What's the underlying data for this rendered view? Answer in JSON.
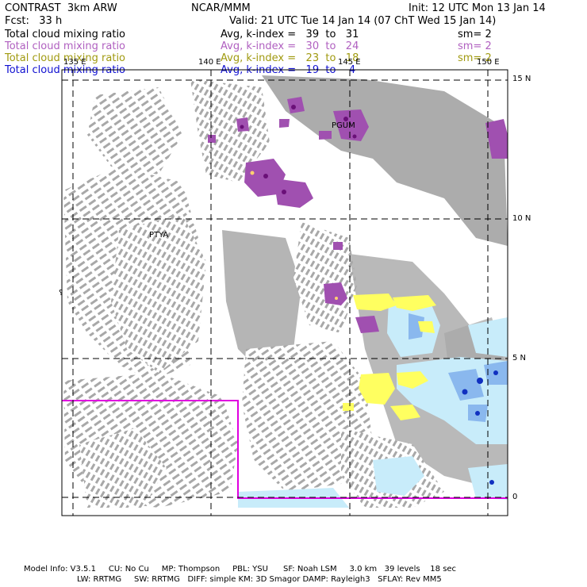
{
  "header": {
    "left_line1": "CONTRAST  3km ARW",
    "left_line2": "Fcst:   33 h",
    "center_line1": "NCAR/MMM",
    "init": "Init: 12 UTC Mon 13 Jan 14",
    "valid": "Valid: 21 UTC Tue 14 Jan 14 (07 ChT Wed 15 Jan 14)"
  },
  "fields": [
    {
      "name": "Total cloud mixing ratio",
      "range": "Avg, k-index =   39  to   31",
      "sm": "sm= 2",
      "color": "#000000"
    },
    {
      "name": "Total cloud mixing ratio",
      "range": "Avg, k-index =   30  to   24",
      "sm": "sm= 2",
      "color": "#b060c0"
    },
    {
      "name": "Total cloud mixing ratio",
      "range": "Avg, k-index =   23  to   18",
      "sm": "sm= 2",
      "color": "#a09a10"
    },
    {
      "name": "Total cloud mixing ratio",
      "range": "Avg, k-index =   19  to    4",
      "sm": "",
      "color": "#1010d0"
    }
  ],
  "map": {
    "lon_labels": [
      "135 E",
      "140 E",
      "145 E",
      "150 E"
    ],
    "lat_labels": [
      "15 N",
      "10 N",
      "5 N",
      "0"
    ],
    "stations": [
      "PGUM",
      "PTYA"
    ],
    "colors": {
      "cloud_grey": "#a8a8a8",
      "cloud_purple": "#a050b0",
      "cloud_dark_purple": "#6a1078",
      "cloud_yellow": "#ffff60",
      "cloud_lightblue": "#c8ecfa",
      "cloud_blue": "#8ab8ee",
      "cloud_darkblue": "#1030c0",
      "box": "#e000e0"
    }
  },
  "footer": {
    "line1": "Model Info: V3.5.1     CU: No Cu     MP: Thompson     PBL: YSU      SF: Noah LSM     3.0 km   39 levels    18 sec",
    "line2": "LW: RRTMG     SW: RRTMG   DIFF: simple KM: 3D Smagor DAMP: Rayleigh3   SFLAY: Rev MM5"
  }
}
